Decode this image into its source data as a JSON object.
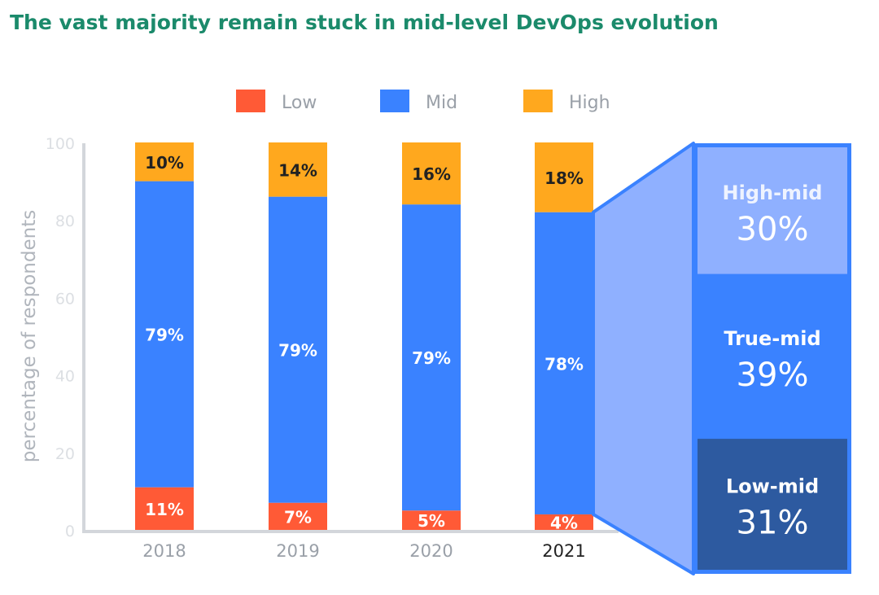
{
  "chart_data": {
    "type": "bar",
    "stacked": true,
    "title": "The vast majority remain stuck in mid-level DevOps evolution",
    "ylabel": "percentage of respondents",
    "xlabel": "",
    "ylim": [
      0,
      100
    ],
    "yticks": [
      "0",
      "20",
      "40",
      "60",
      "80",
      "100"
    ],
    "categories": [
      "2018",
      "2019",
      "2020",
      "2021"
    ],
    "highlight_category": "2021",
    "legend_position": "top",
    "series": [
      {
        "name": "Low",
        "color": "#ff5a36",
        "values": [
          11,
          7,
          5,
          4
        ],
        "labels": [
          "11%",
          "7%",
          "5%",
          "4%"
        ]
      },
      {
        "name": "Mid",
        "color": "#3a82ff",
        "values": [
          79,
          79,
          79,
          78
        ],
        "labels": [
          "79%",
          "79%",
          "79%",
          "78%"
        ]
      },
      {
        "name": "High",
        "color": "#ffa81e",
        "values": [
          10,
          14,
          16,
          18
        ],
        "labels": [
          "10%",
          "14%",
          "16%",
          "18%"
        ]
      }
    ],
    "breakdown": {
      "of_category": "2021",
      "of_series": "Mid",
      "segments": [
        {
          "name": "High-mid",
          "value": 30,
          "label": "30%",
          "color": "#8fb0ff"
        },
        {
          "name": "True-mid",
          "value": 39,
          "label": "39%",
          "color": "#3a82ff"
        },
        {
          "name": "Low-mid",
          "value": 31,
          "label": "31%",
          "color": "#2d5aa0"
        }
      ]
    }
  }
}
